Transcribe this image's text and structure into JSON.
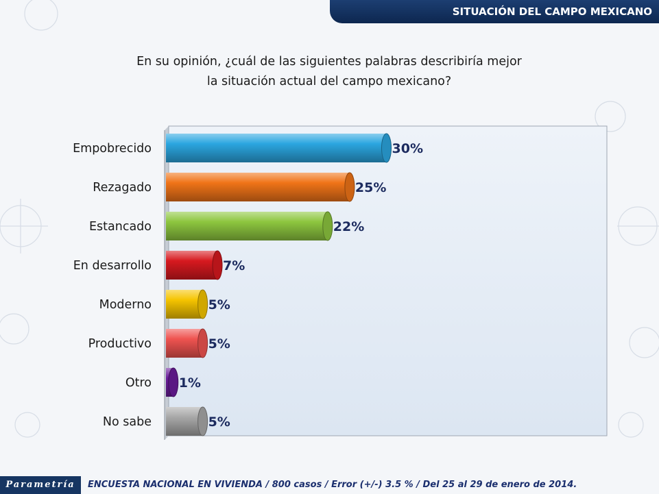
{
  "header": {
    "title": "SITUACIÓN DEL CAMPO MEXICANO"
  },
  "question": {
    "line1": "En su opinión, ¿cuál de las siguientes palabras describiría mejor",
    "line2": "la situación actual del campo mexicano?"
  },
  "chart_data": {
    "type": "bar",
    "orientation": "horizontal",
    "categories": [
      "Empobrecido",
      "Rezagado",
      "Estancado",
      "En desarrollo",
      "Moderno",
      "Productivo",
      "Otro",
      "No sabe"
    ],
    "values": [
      30,
      25,
      22,
      7,
      5,
      5,
      1,
      5
    ],
    "value_labels": [
      "30%",
      "25%",
      "22%",
      "7%",
      "5%",
      "5%",
      "1%",
      "5%"
    ],
    "colors": [
      "#2ba6e0",
      "#f07418",
      "#8dc63f",
      "#d7191f",
      "#f5c400",
      "#ef5350",
      "#6a1b9a",
      "#a8a8a8"
    ],
    "xlim": [
      0,
      60
    ],
    "grid": false,
    "legend": "none"
  },
  "footer": {
    "logo": "Parametría",
    "note": "ENCUESTA NACIONAL EN VIVIENDA / 800 casos / Error (+/-) 3.5 % / Del 25 al 29 de enero de 2014."
  }
}
